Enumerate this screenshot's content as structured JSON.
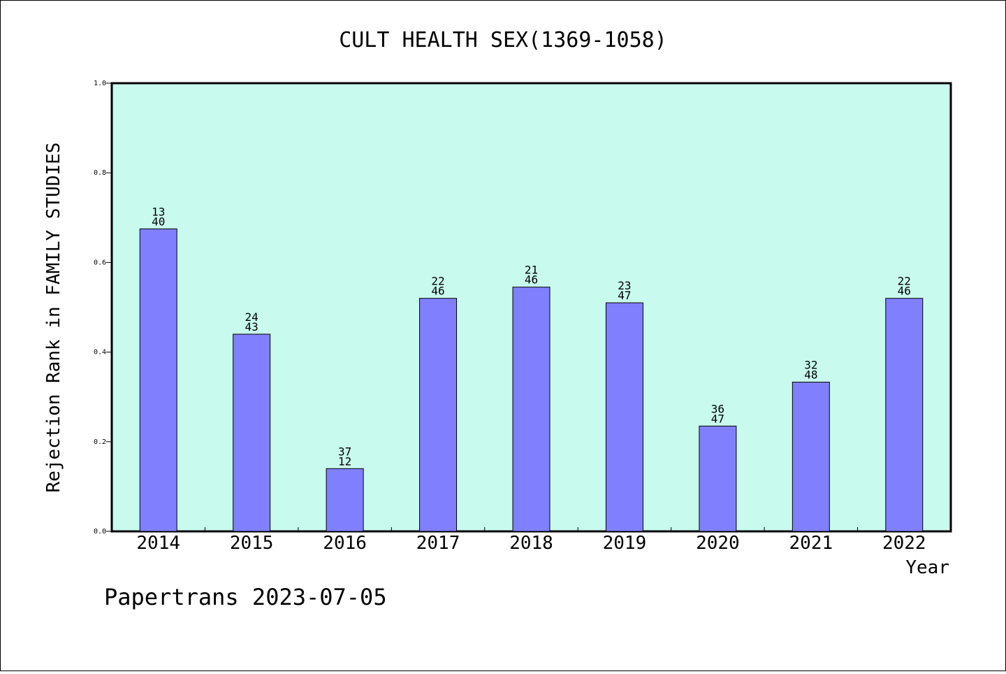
{
  "chart_data": {
    "type": "bar",
    "title": "CULT HEALTH SEX(1369-1058)",
    "xlabel": "Year",
    "ylabel": "Rejection Rank in FAMILY STUDIES",
    "ylim": [
      0,
      1.0
    ],
    "yticks": [
      "0.0",
      "0.2",
      "0.4",
      "0.6",
      "0.8",
      "1.0"
    ],
    "categories": [
      "2014",
      "2015",
      "2016",
      "2017",
      "2018",
      "2019",
      "2020",
      "2021",
      "2022"
    ],
    "values": [
      0.675,
      0.44,
      0.14,
      0.52,
      0.545,
      0.51,
      0.235,
      0.333,
      0.52
    ],
    "annotations": [
      [
        "13",
        "40"
      ],
      [
        "24",
        "43"
      ],
      [
        "37",
        "12"
      ],
      [
        "22",
        "46"
      ],
      [
        "21",
        "46"
      ],
      [
        "23",
        "47"
      ],
      [
        "36",
        "47"
      ],
      [
        "32",
        "48"
      ],
      [
        "22",
        "46"
      ]
    ],
    "plot_background": "#c8fbee",
    "bar_color": "#8080ff",
    "grid": false,
    "legend": "none"
  },
  "footer": {
    "text": "Papertrans 2023-07-05"
  }
}
